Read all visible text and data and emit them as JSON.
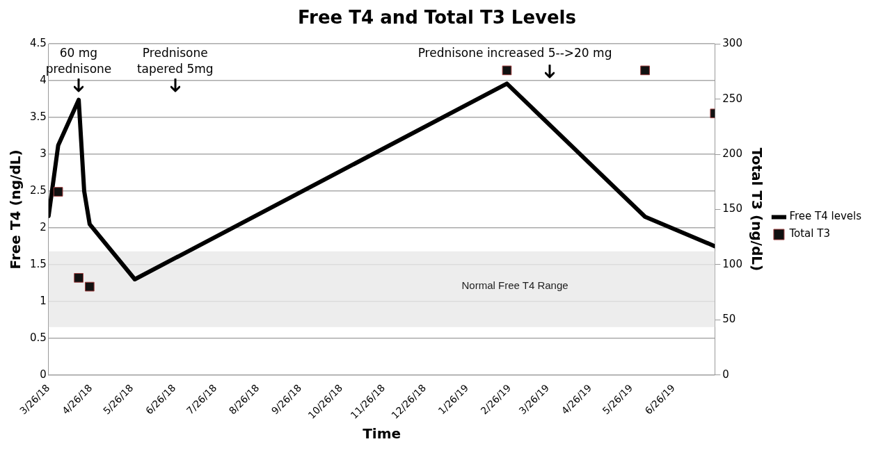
{
  "chart_data": {
    "type": "line",
    "title": "Free T4 and Total T3 Levels",
    "xlabel": "Time",
    "ylabel": "Free T4 (ng/dL)",
    "y2label": "Total T3 (ng/dL)",
    "xlim": [
      "2018-03-26",
      "2019-07-26"
    ],
    "xticks": [
      {
        "value": "2018-03-26",
        "label": "3/26/18"
      },
      {
        "value": "2018-04-26",
        "label": "4/26/18"
      },
      {
        "value": "2018-05-26",
        "label": "5/26/18"
      },
      {
        "value": "2018-06-26",
        "label": "6/26/18"
      },
      {
        "value": "2018-07-26",
        "label": "7/26/18"
      },
      {
        "value": "2018-08-26",
        "label": "8/26/18"
      },
      {
        "value": "2018-09-26",
        "label": "9/26/18"
      },
      {
        "value": "2018-10-26",
        "label": "10/26/18"
      },
      {
        "value": "2018-11-26",
        "label": "11/26/18"
      },
      {
        "value": "2018-12-26",
        "label": "12/26/18"
      },
      {
        "value": "2019-01-26",
        "label": "1/26/19"
      },
      {
        "value": "2019-02-26",
        "label": "2/26/19"
      },
      {
        "value": "2019-03-26",
        "label": "3/26/19"
      },
      {
        "value": "2019-04-26",
        "label": "4/26/19"
      },
      {
        "value": "2019-05-26",
        "label": "5/26/19"
      },
      {
        "value": "2019-06-26",
        "label": "6/26/19"
      }
    ],
    "ylim": [
      0,
      4.5
    ],
    "yticks": [
      0,
      0.5,
      1,
      1.5,
      2,
      2.5,
      3,
      3.5,
      4,
      4.5
    ],
    "y2lim": [
      0,
      300
    ],
    "y2ticks": [
      0,
      50,
      100,
      150,
      200,
      250,
      300
    ],
    "series": [
      {
        "name": "Free T4 levels",
        "color": "#000000",
        "marker": "none",
        "line_style": "solid",
        "x": [
          "2018-03-26",
          "2018-04-02",
          "2018-04-17",
          "2018-04-21",
          "2018-04-25",
          "2018-05-28",
          "2019-02-24",
          "2019-06-05",
          "2019-07-26"
        ],
        "values": [
          2.16,
          3.12,
          3.74,
          2.5,
          2.05,
          1.3,
          3.96,
          2.15,
          1.75
        ]
      },
      {
        "name": "Total T3",
        "type": "scatter",
        "axis": "y2",
        "color": "#111111",
        "marker": "square",
        "x": [
          "2018-04-02",
          "2018-04-17",
          "2018-04-25",
          "2019-02-24",
          "2019-06-05",
          "2019-07-26"
        ],
        "values": [
          166,
          88,
          80,
          276,
          276,
          237
        ]
      }
    ],
    "bands": [
      {
        "axis": "y",
        "from": 0.65,
        "to": 1.68,
        "label": "Normal Free T4 Range",
        "color": "#e8e8e8"
      }
    ],
    "annotations": [
      "60 mg\nprednisone",
      "Prednisone\ntapered 5mg",
      "Prednisone increased 5-->20 mg"
    ],
    "grid": "y",
    "legend": "right"
  }
}
